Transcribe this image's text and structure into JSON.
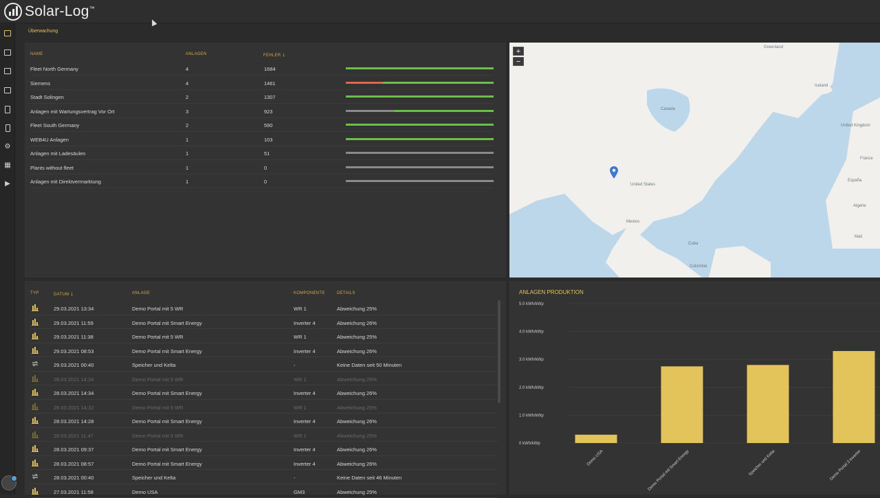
{
  "app": {
    "name": "Solar-Log",
    "trademark": "™"
  },
  "breadcrumb": "Überwachung",
  "sidebar": {
    "icons": [
      "monitoring-icon",
      "dashboard-icon",
      "reports-icon",
      "documents-icon",
      "clipboard-icon",
      "device-icon",
      "settings-icon",
      "grid-icon",
      "video-icon"
    ]
  },
  "fleet_table": {
    "headers": {
      "name": "NAME",
      "plants": "ANLAGEN",
      "errors": "FEHLER"
    },
    "rows": [
      {
        "name": "Fleet North Germany",
        "plants": "4",
        "errors": "1684",
        "status_fraction": {
          "red": 0.0,
          "grey": 0.0,
          "green": 1.0
        }
      },
      {
        "name": "Siemens",
        "plants": "4",
        "errors": "1461",
        "status_fraction": {
          "red": 0.25,
          "grey": 0.0,
          "green": 0.75
        }
      },
      {
        "name": "Stadt Solingen",
        "plants": "2",
        "errors": "1307",
        "status_fraction": {
          "red": 0.0,
          "grey": 0.0,
          "green": 1.0
        }
      },
      {
        "name": "Anlagen mit Wartungsvertrag Vor Ort",
        "plants": "3",
        "errors": "923",
        "status_fraction": {
          "red": 0.0,
          "grey": 0.33,
          "green": 0.67
        }
      },
      {
        "name": "Fleet South Germany",
        "plants": "2",
        "errors": "590",
        "status_fraction": {
          "red": 0.0,
          "grey": 0.0,
          "green": 1.0
        }
      },
      {
        "name": "WEB4U Anlagen",
        "plants": "1",
        "errors": "103",
        "status_fraction": {
          "red": 0.0,
          "grey": 0.0,
          "green": 1.0
        }
      },
      {
        "name": "Anlagen mit Ladesäulen",
        "plants": "1",
        "errors": "51",
        "status_fraction": {
          "red": 0.0,
          "grey": 1.0,
          "green": 0.0
        }
      },
      {
        "name": "Plants without fleet",
        "plants": "1",
        "errors": "0",
        "status_fraction": {
          "red": 0.0,
          "grey": 1.0,
          "green": 0.0
        }
      },
      {
        "name": "Anlagen mit Direktvermarktung",
        "plants": "1",
        "errors": "0",
        "status_fraction": {
          "red": 0.0,
          "grey": 1.0,
          "green": 0.0
        }
      }
    ]
  },
  "map": {
    "zoom_in": "+",
    "zoom_out": "−",
    "labels": [
      "United States",
      "Mexico",
      "Canada",
      "Greenland",
      "Iceland",
      "United Kingdom",
      "France",
      "España",
      "Algérie",
      "Mali",
      "Colombia",
      "Cuba"
    ]
  },
  "events_table": {
    "headers": {
      "type": "TYP",
      "date": "DATUM",
      "plant": "ANLAGE",
      "component": "KOMPONENTE",
      "details": "DETAILS"
    },
    "rows": [
      {
        "type": "chart",
        "date": "29.03.2021 13:34",
        "plant": "Demo Portal mit 5 WR",
        "component": "WR 1",
        "details": "Abweichung 25%",
        "dim": false
      },
      {
        "type": "chart",
        "date": "29.03.2021 11:59",
        "plant": "Demo Portal mit Smart Energy",
        "component": "Inverter 4",
        "details": "Abweichung 26%",
        "dim": false
      },
      {
        "type": "chart",
        "date": "29.03.2021 11:38",
        "plant": "Demo Portal mit 5 WR",
        "component": "WR 1",
        "details": "Abweichung 25%",
        "dim": false
      },
      {
        "type": "chart",
        "date": "29.03.2021 08:53",
        "plant": "Demo Portal mit Smart Energy",
        "component": "Inverter 4",
        "details": "Abweichung 26%",
        "dim": false
      },
      {
        "type": "sync",
        "date": "29.03.2021 00:40",
        "plant": "Speicher und Kelta",
        "component": "-",
        "details": "Keine Daten seit 50 Minuten",
        "dim": false
      },
      {
        "type": "chart",
        "date": "28.03.2021 14:34",
        "plant": "Demo Portal mit 5 WR",
        "component": "WR 1",
        "details": "Abweichung 25%",
        "dim": true
      },
      {
        "type": "chart",
        "date": "28.03.2021 14:34",
        "plant": "Demo Portal mit Smart Energy",
        "component": "Inverter 4",
        "details": "Abweichung 26%",
        "dim": false
      },
      {
        "type": "chart",
        "date": "28.03.2021 14:32",
        "plant": "Demo Portal mit 5 WR",
        "component": "WR 1",
        "details": "Abweichung 25%",
        "dim": true
      },
      {
        "type": "chart",
        "date": "28.03.2021 14:28",
        "plant": "Demo Portal mit Smart Energy",
        "component": "Inverter 4",
        "details": "Abweichung 26%",
        "dim": false
      },
      {
        "type": "chart",
        "date": "28.03.2021 11:47",
        "plant": "Demo Portal mit 5 WR",
        "component": "WR 1",
        "details": "Abweichung 25%",
        "dim": true
      },
      {
        "type": "chart",
        "date": "28.03.2021 09:37",
        "plant": "Demo Portal mit Smart Energy",
        "component": "Inverter 4",
        "details": "Abweichung 26%",
        "dim": false
      },
      {
        "type": "chart",
        "date": "28.03.2021 08:57",
        "plant": "Demo Portal mit Smart Energy",
        "component": "Inverter 4",
        "details": "Abweichung 26%",
        "dim": false
      },
      {
        "type": "sync",
        "date": "28.03.2021 00:40",
        "plant": "Speicher und Kelta",
        "component": "-",
        "details": "Keine Daten seit 46 Minuten",
        "dim": false
      },
      {
        "type": "chart",
        "date": "27.03.2021 11:58",
        "plant": "Demo USA",
        "component": "GM3",
        "details": "Abweichung 25%",
        "dim": false
      }
    ]
  },
  "colors": {
    "accent": "#e6c35a",
    "bar_green": "#6cc04a",
    "bar_red": "#e0664a",
    "bar_grey": "#8a8a8a",
    "chart_bar": "#e2c45a"
  },
  "chart_data": {
    "type": "bar",
    "title": "ANLAGEN PRODUKTION",
    "categories": [
      "Demo USA",
      "Demo Portal mit Smart Energy",
      "Speicher und Kelta",
      "Demo Portal 3 Inverter"
    ],
    "values": [
      0.3,
      2.75,
      2.8,
      3.3
    ],
    "ylim": [
      0,
      5
    ],
    "yticks": [
      "0 kWh/kWp",
      "1.0 kWh/kWp",
      "2.0 kWh/kWp",
      "3.0 kWh/kWp",
      "4.0 kWh/kWp",
      "5.0 kWh/kWp"
    ],
    "grid": true,
    "legend": "none"
  }
}
